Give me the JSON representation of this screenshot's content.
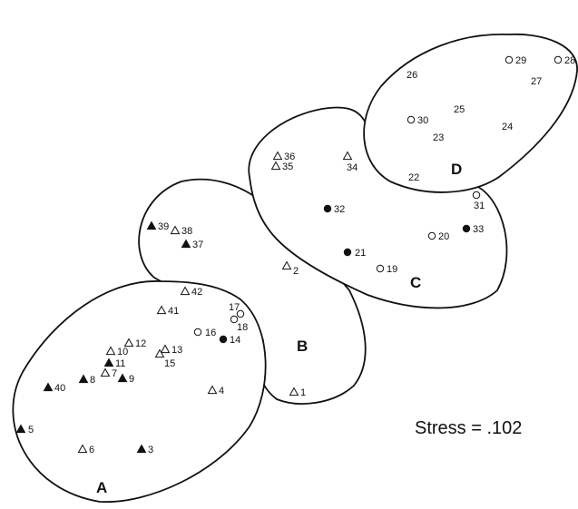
{
  "groups": [
    {
      "id": "A",
      "label": "A"
    },
    {
      "id": "B",
      "label": "B"
    },
    {
      "id": "C",
      "label": "C"
    },
    {
      "id": "D",
      "label": "D"
    }
  ],
  "stress_text": "Stress = .102",
  "colors": {
    "ink": "#111111",
    "background": "#ffffff"
  },
  "points": [
    {
      "label": "1",
      "marker": "triangle-open"
    },
    {
      "label": "2",
      "marker": "triangle-open"
    },
    {
      "label": "3",
      "marker": "triangle-filled"
    },
    {
      "label": "4",
      "marker": "triangle-open"
    },
    {
      "label": "5",
      "marker": "triangle-filled"
    },
    {
      "label": "6",
      "marker": "triangle-open"
    },
    {
      "label": "7",
      "marker": "triangle-open"
    },
    {
      "label": "8",
      "marker": "triangle-filled"
    },
    {
      "label": "9",
      "marker": "triangle-filled"
    },
    {
      "label": "10",
      "marker": "triangle-open"
    },
    {
      "label": "11",
      "marker": "triangle-filled"
    },
    {
      "label": "12",
      "marker": "triangle-open"
    },
    {
      "label": "13",
      "marker": "triangle-open"
    },
    {
      "label": "14",
      "marker": "circle-filled"
    },
    {
      "label": "15",
      "marker": "triangle-open"
    },
    {
      "label": "16",
      "marker": "circle-open"
    },
    {
      "label": "17",
      "marker": "circle-open"
    },
    {
      "label": "18",
      "marker": "circle-open"
    },
    {
      "label": "19",
      "marker": "circle-open"
    },
    {
      "label": "20",
      "marker": "circle-open"
    },
    {
      "label": "21",
      "marker": "circle-filled"
    },
    {
      "label": "22",
      "marker": "none"
    },
    {
      "label": "23",
      "marker": "none"
    },
    {
      "label": "24",
      "marker": "none"
    },
    {
      "label": "25",
      "marker": "none"
    },
    {
      "label": "26",
      "marker": "none"
    },
    {
      "label": "27",
      "marker": "none"
    },
    {
      "label": "28",
      "marker": "circle-open"
    },
    {
      "label": "29",
      "marker": "circle-open"
    },
    {
      "label": "30",
      "marker": "circle-open"
    },
    {
      "label": "31",
      "marker": "circle-open"
    },
    {
      "label": "32",
      "marker": "circle-filled"
    },
    {
      "label": "33",
      "marker": "circle-filled"
    },
    {
      "label": "34",
      "marker": "triangle-open"
    },
    {
      "label": "35",
      "marker": "triangle-open"
    },
    {
      "label": "36",
      "marker": "triangle-open"
    },
    {
      "label": "37",
      "marker": "triangle-filled"
    },
    {
      "label": "38",
      "marker": "triangle-open"
    },
    {
      "label": "39",
      "marker": "triangle-filled"
    },
    {
      "label": "40",
      "marker": "triangle-filled"
    },
    {
      "label": "41",
      "marker": "triangle-open"
    },
    {
      "label": "42",
      "marker": "triangle-open"
    }
  ]
}
